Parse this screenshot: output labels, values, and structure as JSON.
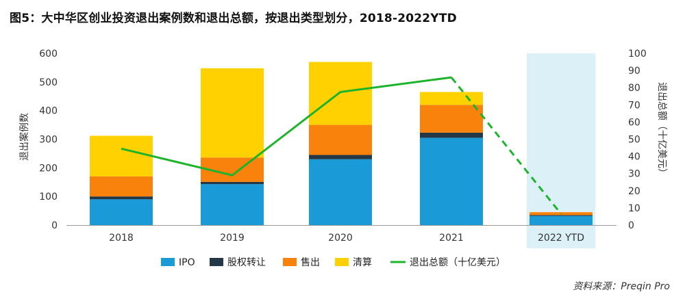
{
  "title": "图5：大中华区创业投资退出案例数和退出总额，按退出类型划分，2018-2022YTD",
  "source": "资料来源：Preqin Pro",
  "chart_data": {
    "type": "bar",
    "stacked": true,
    "categories": [
      "2018",
      "2019",
      "2020",
      "2021",
      "2022 YTD"
    ],
    "highlight_category": "2022 YTD",
    "highlight_color": "#dcf0f8",
    "ylabel": "退出案例数",
    "ylim": [
      0,
      600
    ],
    "yticks": [
      0,
      100,
      200,
      300,
      400,
      500,
      600
    ],
    "y2label": "退出总额（十亿美元）",
    "y2lim": [
      0,
      100
    ],
    "y2ticks": [
      0,
      10,
      20,
      30,
      40,
      50,
      60,
      70,
      80,
      90,
      100
    ],
    "grid": false,
    "legend_position": "bottom",
    "series": [
      {
        "name": "IPO",
        "color": "#1a9ad6",
        "values": [
          90,
          143,
          230,
          305,
          32
        ]
      },
      {
        "name": "股权转让",
        "color": "#243746",
        "values": [
          10,
          8,
          15,
          18,
          3
        ]
      },
      {
        "name": "售出",
        "color": "#f8820c",
        "values": [
          70,
          85,
          105,
          97,
          10
        ]
      },
      {
        "name": "清算",
        "color": "#ffd100",
        "values": [
          142,
          312,
          220,
          45,
          0
        ]
      }
    ],
    "line_series": {
      "name": "退出总额（十亿美元）",
      "color": "#1db32b",
      "axis": "right",
      "values": [
        44.5,
        29,
        77.5,
        86,
        6.5
      ],
      "dashed_from_index": 3
    }
  }
}
